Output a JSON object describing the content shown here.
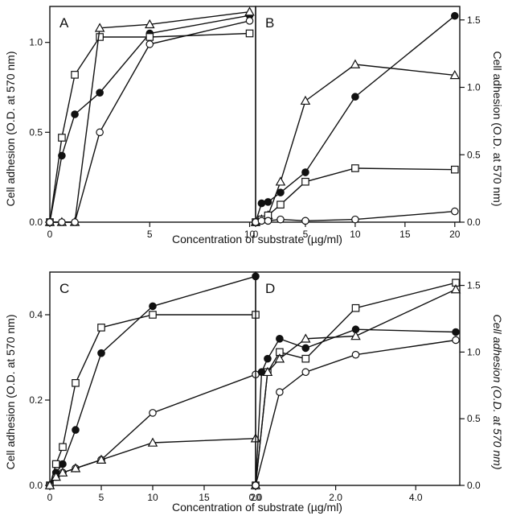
{
  "figure": {
    "ylabel_left": "Cell adhesion (O.D. at 570 nm)",
    "ylabel_right": "Cell adhesion (O.D. at 570 nm)",
    "xlabel_top": "Concentration of substrate (µg/ml)",
    "xlabel_bottom": "Concentration of substrate (µg/ml)"
  },
  "chart_data": [
    {
      "panel": "A",
      "type": "line",
      "xlim": [
        0,
        10.3
      ],
      "ylim": [
        0,
        1.2
      ],
      "xticks": [
        0,
        5,
        10
      ],
      "xtick_labels": [
        "0",
        "5",
        "10"
      ],
      "yticks": [
        0,
        0.5,
        1.0
      ],
      "ytick_labels": [
        "0.0",
        "0.5",
        "1.0"
      ],
      "series": [
        {
          "marker": "filled-circle",
          "x": [
            0,
            0.6,
            1.25,
            2.5,
            5,
            10
          ],
          "y": [
            0,
            0.37,
            0.6,
            0.72,
            1.05,
            1.15
          ]
        },
        {
          "marker": "open-square",
          "x": [
            0,
            0.6,
            1.25,
            2.5,
            5,
            10
          ],
          "y": [
            0,
            0.47,
            0.82,
            1.03,
            1.03,
            1.05
          ]
        },
        {
          "marker": "open-triangle",
          "x": [
            0,
            0.6,
            1.25,
            2.5,
            5,
            10
          ],
          "y": [
            0,
            0,
            0,
            1.08,
            1.1,
            1.17
          ]
        },
        {
          "marker": "open-circle",
          "x": [
            0,
            0.6,
            1.25,
            2.5,
            5,
            10
          ],
          "y": [
            0,
            0,
            0,
            0.5,
            0.99,
            1.12
          ]
        }
      ]
    },
    {
      "panel": "B",
      "type": "line",
      "xlim": [
        0,
        20.5
      ],
      "ylim": [
        0,
        1.6
      ],
      "xticks": [
        0,
        5,
        10,
        15,
        20
      ],
      "xtick_labels": [
        "0",
        "5",
        "10",
        "15",
        "20"
      ],
      "yticks": [
        0,
        0.5,
        1.0,
        1.5
      ],
      "ytick_labels": [
        "0.0",
        "0.5",
        "1.0",
        "1.5"
      ],
      "series": [
        {
          "marker": "filled-circle",
          "x": [
            0,
            0.6,
            1.25,
            2.5,
            5,
            10,
            20
          ],
          "y": [
            0,
            0.14,
            0.15,
            0.22,
            0.37,
            0.93,
            1.53
          ]
        },
        {
          "marker": "open-triangle",
          "x": [
            0,
            0.6,
            1.25,
            2.5,
            5,
            10,
            20
          ],
          "y": [
            0,
            0.02,
            0.05,
            0.3,
            0.9,
            1.17,
            1.09
          ]
        },
        {
          "marker": "open-square",
          "x": [
            0,
            0.6,
            1.25,
            2.5,
            5,
            10,
            20
          ],
          "y": [
            0,
            0.02,
            0.05,
            0.13,
            0.3,
            0.4,
            0.39
          ]
        },
        {
          "marker": "open-circle",
          "x": [
            0,
            0.6,
            1.25,
            2.5,
            5,
            10,
            20
          ],
          "y": [
            0,
            0.01,
            0.01,
            0.02,
            0.01,
            0.02,
            0.08
          ]
        }
      ]
    },
    {
      "panel": "C",
      "type": "line",
      "xlim": [
        0,
        20
      ],
      "ylim": [
        0,
        0.5
      ],
      "xticks": [
        0,
        5,
        10,
        15,
        20
      ],
      "xtick_labels": [
        "0",
        "5",
        "10",
        "15",
        "20"
      ],
      "yticks": [
        0,
        0.2,
        0.4
      ],
      "ytick_labels": [
        "0.0",
        "0.2",
        "0.4"
      ],
      "series": [
        {
          "marker": "filled-circle",
          "x": [
            0,
            0.6,
            1.25,
            2.5,
            5,
            10,
            20
          ],
          "y": [
            0,
            0.03,
            0.05,
            0.13,
            0.31,
            0.42,
            0.49
          ]
        },
        {
          "marker": "open-square",
          "x": [
            0,
            0.6,
            1.25,
            2.5,
            5,
            10,
            20
          ],
          "y": [
            0,
            0.05,
            0.09,
            0.24,
            0.37,
            0.4,
            0.4
          ]
        },
        {
          "marker": "open-circle",
          "x": [
            0,
            0.6,
            1.25,
            2.5,
            5,
            10,
            20
          ],
          "y": [
            0,
            0.02,
            0.03,
            0.04,
            0.06,
            0.17,
            0.26
          ]
        },
        {
          "marker": "open-triangle",
          "x": [
            0,
            0.6,
            1.25,
            2.5,
            5,
            10,
            20
          ],
          "y": [
            0,
            0.02,
            0.03,
            0.04,
            0.06,
            0.1,
            0.11
          ]
        }
      ]
    },
    {
      "panel": "D",
      "type": "line",
      "xlim": [
        0,
        5.1
      ],
      "ylim": [
        0,
        1.6
      ],
      "xticks": [
        0,
        2,
        4
      ],
      "xtick_labels": [
        "0.0",
        "2.0",
        "4.0"
      ],
      "yticks": [
        0,
        0.5,
        1.0,
        1.5
      ],
      "ytick_labels": [
        "0.0",
        "0.5",
        "1.0",
        "1.5"
      ],
      "series": [
        {
          "marker": "open-square",
          "x": [
            0,
            0.3,
            0.6,
            1.25,
            2.5,
            5
          ],
          "y": [
            0,
            0.85,
            1.0,
            0.95,
            1.33,
            1.52
          ]
        },
        {
          "marker": "open-triangle",
          "x": [
            0,
            0.3,
            0.6,
            1.25,
            2.5,
            5
          ],
          "y": [
            0,
            0.85,
            0.95,
            1.1,
            1.12,
            1.47
          ]
        },
        {
          "marker": "filled-circle",
          "x": [
            0,
            0.15,
            0.3,
            0.6,
            1.25,
            2.5,
            5
          ],
          "y": [
            0,
            0.85,
            0.95,
            1.1,
            1.03,
            1.17,
            1.15
          ]
        },
        {
          "marker": "open-circle",
          "x": [
            0,
            0.6,
            1.25,
            2.5,
            5
          ],
          "y": [
            0,
            0.7,
            0.85,
            0.98,
            1.09
          ]
        }
      ]
    }
  ]
}
